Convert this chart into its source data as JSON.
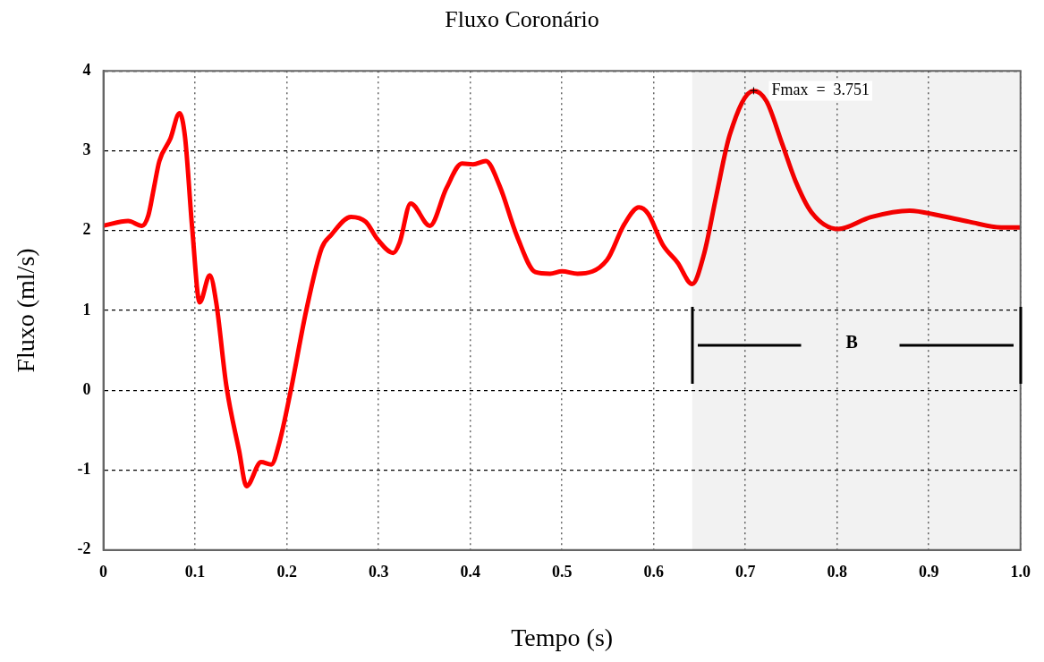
{
  "chart_data": {
    "type": "line",
    "title": "Fluxo Coronário",
    "xlabel": "Tempo (s)",
    "ylabel": "Fluxo (ml/s)",
    "xlim": [
      0,
      1
    ],
    "xticks": [
      0,
      0.1,
      0.2,
      0.3,
      0.4,
      0.5,
      0.6,
      0.7,
      0.8,
      0.9,
      {
        "value": 1,
        "label": "1.0"
      }
    ],
    "ylim": [
      -2,
      4
    ],
    "yticks": [
      -2,
      -1,
      0,
      1,
      2,
      3,
      4
    ],
    "grid": true,
    "legend": false,
    "marker": "none",
    "line_style": "solid",
    "series": [
      {
        "color": "#ff0000",
        "x": [
          0,
          0.027,
          0.042,
          0.049,
          0.055,
          0.061,
          0.073,
          0.083,
          0.089,
          0.097,
          0.105,
          0.116,
          0.123,
          0.134,
          0.148,
          0.156,
          0.172,
          0.183,
          0.192,
          0.204,
          0.221,
          0.238,
          0.248,
          0.27,
          0.286,
          0.299,
          0.316,
          0.323,
          0.335,
          0.356,
          0.374,
          0.391,
          0.403,
          0.417,
          0.432,
          0.451,
          0.471,
          0.487,
          0.5,
          0.517,
          0.549,
          0.568,
          0.584,
          0.594,
          0.61,
          0.626,
          0.642,
          0.655,
          0.668,
          0.683,
          0.709,
          0.723,
          0.74,
          0.755,
          0.772,
          0.801,
          0.837,
          0.879,
          0.911,
          0.944,
          0.979,
          1.0
        ],
        "values": [
          2.06,
          2.12,
          2.06,
          2.19,
          2.53,
          2.87,
          3.15,
          3.47,
          3.17,
          2.0,
          1.1,
          1.44,
          1.1,
          0.06,
          -0.76,
          -1.2,
          -0.9,
          -0.93,
          -0.65,
          -0.02,
          0.99,
          1.78,
          1.94,
          2.17,
          2.11,
          1.89,
          1.72,
          1.85,
          2.34,
          2.06,
          2.53,
          2.84,
          2.83,
          2.87,
          2.56,
          1.93,
          1.48,
          1.46,
          1.49,
          1.46,
          1.63,
          2.08,
          2.29,
          2.21,
          1.82,
          1.6,
          1.33,
          1.71,
          2.42,
          3.2,
          3.751,
          3.62,
          3.09,
          2.61,
          2.23,
          2.02,
          2.17,
          2.25,
          2.19,
          2.11,
          2.04,
          2.04
        ]
      }
    ],
    "annotations": [
      {
        "text": "Fmax  =  3.751",
        "x": 0.709,
        "y": 3.751
      }
    ],
    "bands": [
      {
        "axis": "x",
        "from": 0.642,
        "to": 1.0,
        "label": "B",
        "color": "#000000"
      }
    ]
  }
}
